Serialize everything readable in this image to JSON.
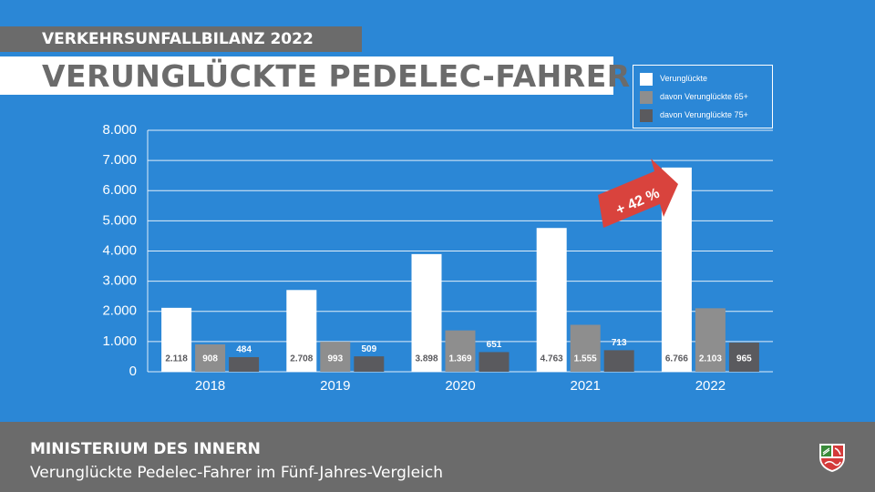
{
  "kicker": "VERKEHRSUNFALLBILANZ 2022",
  "title": "VERUNGLÜCKTE PEDELEC-FAHRER",
  "legend": [
    {
      "label": "Verunglückte",
      "color": "#ffffff"
    },
    {
      "label": "davon Verunglückte 65+",
      "color": "#8e8e8e"
    },
    {
      "label": "davon Verunglückte 75+",
      "color": "#5a5a5e"
    }
  ],
  "annotation": "+ 42 %",
  "footer": {
    "title": "MINISTERIUM DES INNERN",
    "subtitle": "Verunglückte Pedelec-Fahrer im Fünf-Jahres-Vergleich"
  },
  "colors": {
    "background": "#2b87d6",
    "bar_total": "#ffffff",
    "bar_65": "#8e8e8e",
    "bar_75": "#5a5a5e",
    "arrow": "#d9433d",
    "footer": "#6b6b6b"
  },
  "chart_data": {
    "type": "bar",
    "categories": [
      "2018",
      "2019",
      "2020",
      "2021",
      "2022"
    ],
    "series": [
      {
        "name": "Verunglückte",
        "values": [
          2118,
          2708,
          3898,
          4763,
          6766
        ],
        "labels": [
          "2.118",
          "2.708",
          "3.898",
          "4.763",
          "6.766"
        ]
      },
      {
        "name": "davon Verunglückte 65+",
        "values": [
          908,
          993,
          1369,
          1555,
          2103
        ],
        "labels": [
          "908",
          "993",
          "1.369",
          "1.555",
          "2.103"
        ]
      },
      {
        "name": "davon Verunglückte 75+",
        "values": [
          484,
          509,
          651,
          713,
          965
        ],
        "labels": [
          "484",
          "509",
          "651",
          "713",
          "965"
        ]
      }
    ],
    "yticks": [
      "0",
      "1.000",
      "2.000",
      "3.000",
      "4.000",
      "5.000",
      "6.000",
      "7.000",
      "8.000"
    ],
    "ylim": [
      0,
      8000
    ],
    "grid": true,
    "legend_position": "top-right"
  }
}
